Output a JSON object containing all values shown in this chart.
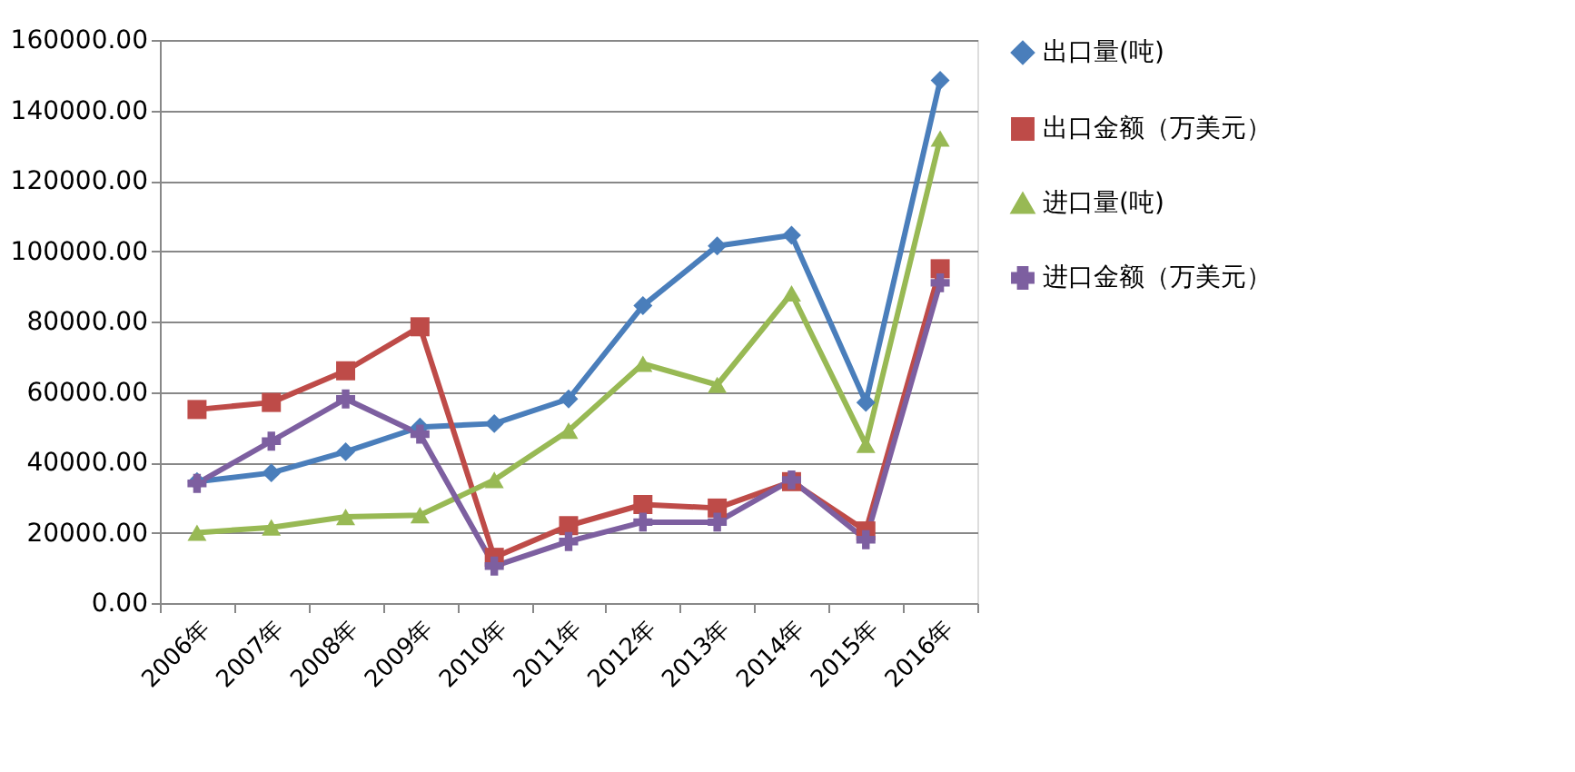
{
  "chart_data": {
    "type": "line",
    "categories": [
      "2006年",
      "2007年",
      "2008年",
      "2009年",
      "2010年",
      "2011年",
      "2012年",
      "2013年",
      "2014年",
      "2015年",
      "2016年"
    ],
    "series": [
      {
        "name": "出口量(吨)",
        "color": "#4a7ebb",
        "marker": "diamond",
        "values": [
          34500,
          37000,
          43000,
          50000,
          51000,
          58000,
          84500,
          101500,
          104500,
          57000,
          148500
        ]
      },
      {
        "name": "出口金额（万美元）",
        "color": "#be4b48",
        "marker": "square",
        "values": [
          55000,
          57000,
          66000,
          78500,
          13000,
          22000,
          28000,
          27000,
          34500,
          20500,
          95000
        ]
      },
      {
        "name": "进口量(吨)",
        "color": "#98b954",
        "marker": "triangle",
        "values": [
          20000,
          21500,
          24500,
          25000,
          35000,
          49000,
          68000,
          62000,
          88000,
          45000,
          132000
        ]
      },
      {
        "name": "进口金额（万美元）",
        "color": "#7d5fa0",
        "marker": "cross",
        "values": [
          34000,
          46000,
          58000,
          48000,
          10500,
          17500,
          23000,
          23000,
          35000,
          18000,
          91000
        ]
      }
    ],
    "ylim": [
      0,
      160000
    ],
    "yticks": [
      {
        "value": 0,
        "label": "0.00"
      },
      {
        "value": 20000,
        "label": "20000.00"
      },
      {
        "value": 40000,
        "label": "40000.00"
      },
      {
        "value": 60000,
        "label": "60000.00"
      },
      {
        "value": 80000,
        "label": "80000.00"
      },
      {
        "value": 100000,
        "label": "100000.00"
      },
      {
        "value": 120000,
        "label": "120000.00"
      },
      {
        "value": 140000,
        "label": "140000.00"
      },
      {
        "value": 160000,
        "label": "160000.00"
      }
    ],
    "grid": "y",
    "legend": "right"
  }
}
